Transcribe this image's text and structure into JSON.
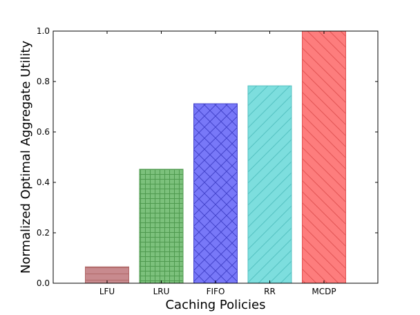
{
  "chart_data": {
    "type": "bar",
    "categories": [
      "LFU",
      "LRU",
      "FIFO",
      "RR",
      "MCDP"
    ],
    "values": [
      0.065,
      0.452,
      0.712,
      0.783,
      1.0
    ],
    "title": "",
    "xlabel": "Caching Policies",
    "ylabel": "Normalized Optimal Aggregate Utility",
    "ylim": [
      0,
      1.0
    ],
    "yticks": [
      "0.0",
      "0.2",
      "0.4",
      "0.6",
      "0.8",
      "1.0"
    ],
    "grid": false,
    "bar_colors": [
      "#c88a8e",
      "#7cc17c",
      "#7878f8",
      "#7ddede",
      "#fd7d7d"
    ],
    "hatch_colors": [
      "#b06868",
      "#4f9a4f",
      "#4444cc",
      "#55c2c2",
      "#e25555"
    ],
    "hatches": [
      "horizontal",
      "grid",
      "crosshatch",
      "forward-diagonal",
      "back-diagonal"
    ]
  }
}
